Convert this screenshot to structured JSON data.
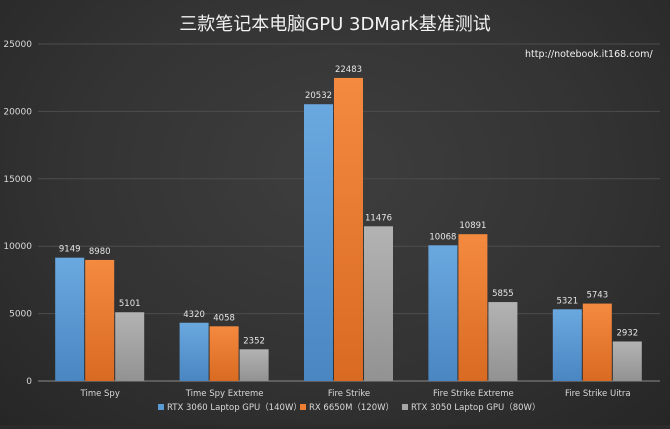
{
  "chart_data": {
    "type": "bar",
    "title": "三款笔记本电脑GPU 3DMark基准测试",
    "watermark": "http://notebook.it168.com/",
    "categories": [
      "Time Spy",
      "Time Spy Extreme",
      "Fire Strike",
      "Fire Strike Extreme",
      "Fire Strike Uitra"
    ],
    "series": [
      {
        "name": "RTX 3060 Laptop GPU（140W）",
        "color": "#5b9bd5",
        "values": [
          9149,
          4320,
          20532,
          10068,
          5321
        ]
      },
      {
        "name": "RX 6650M（120W）",
        "color": "#ed7d31",
        "values": [
          8980,
          4058,
          22483,
          10891,
          5743
        ]
      },
      {
        "name": "RTX 3050 Laptop GPU（80W）",
        "color": "#a5a5a5",
        "values": [
          5101,
          2352,
          11476,
          5855,
          2932
        ]
      }
    ],
    "ylim": [
      0,
      25000
    ],
    "yticks": [
      0,
      5000,
      10000,
      15000,
      20000,
      25000
    ],
    "grid": true,
    "legend": "bottom"
  }
}
